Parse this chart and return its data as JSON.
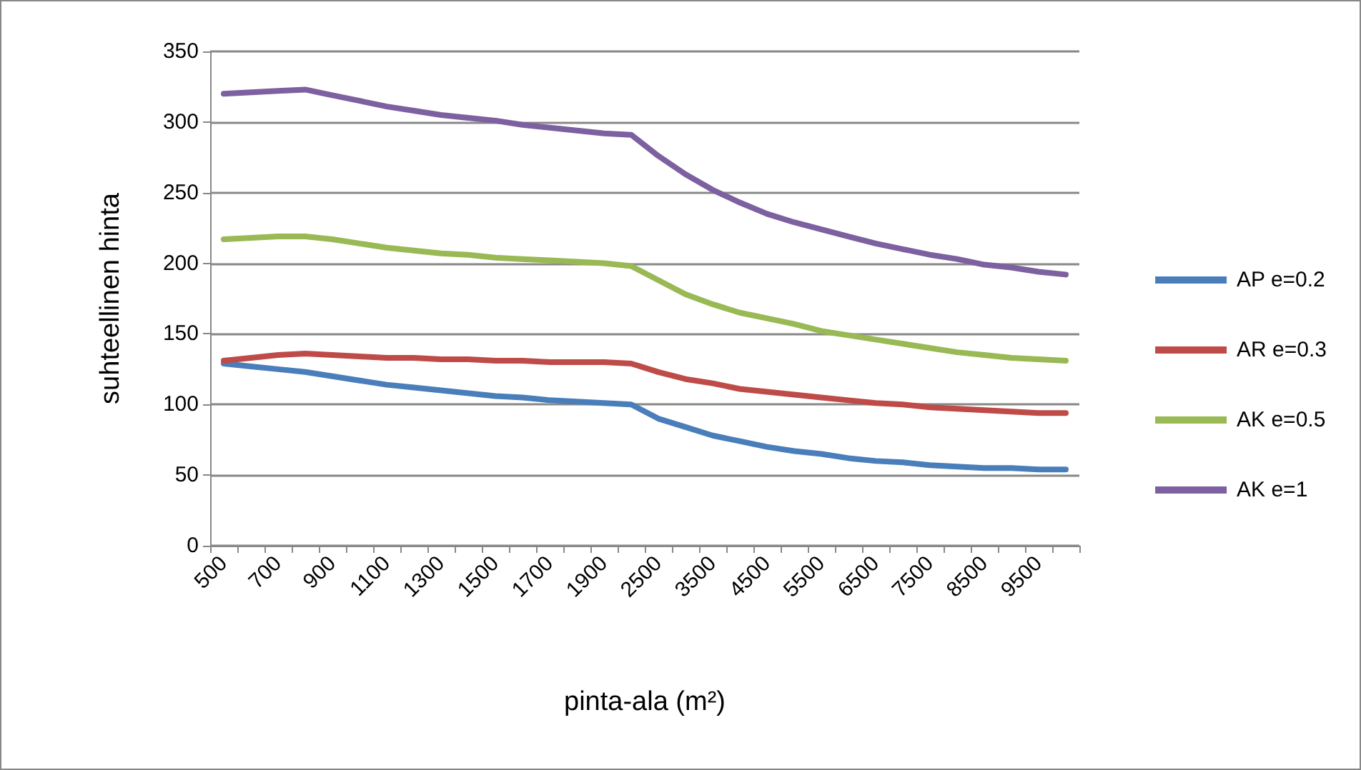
{
  "chart_data": {
    "type": "line",
    "xlabel": "pinta-ala (m²)",
    "ylabel": "suhteellinen hinta",
    "categories": [
      "500",
      null,
      "700",
      null,
      "900",
      null,
      "1100",
      null,
      "1300",
      null,
      "1500",
      null,
      "1700",
      null,
      "1900",
      null,
      "2500",
      null,
      "3500",
      null,
      "4500",
      null,
      "5500",
      null,
      "6500",
      null,
      "7500",
      null,
      "8500",
      null,
      "9500",
      null
    ],
    "series": [
      {
        "name": "AP e=0.2",
        "color": "#4a7ebb",
        "values": [
          129,
          127,
          125,
          123,
          120,
          117,
          114,
          112,
          110,
          108,
          106,
          105,
          103,
          102,
          101,
          100,
          90,
          84,
          78,
          74,
          70,
          67,
          65,
          62,
          60,
          59,
          57,
          56,
          55,
          55,
          54,
          54
        ]
      },
      {
        "name": "AR e=0.3",
        "color": "#be4b48",
        "values": [
          131,
          133,
          135,
          136,
          135,
          134,
          133,
          133,
          132,
          132,
          131,
          131,
          130,
          130,
          130,
          129,
          123,
          118,
          115,
          111,
          109,
          107,
          105,
          103,
          101,
          100,
          98,
          97,
          96,
          95,
          94,
          94
        ]
      },
      {
        "name": "AK e=0.5",
        "color": "#98b954",
        "values": [
          217,
          218,
          219,
          219,
          217,
          214,
          211,
          209,
          207,
          206,
          204,
          203,
          202,
          201,
          200,
          198,
          188,
          178,
          171,
          165,
          161,
          157,
          152,
          149,
          146,
          143,
          140,
          137,
          135,
          133,
          132,
          131
        ]
      },
      {
        "name": "AK e=1",
        "color": "#7d60a0",
        "values": [
          320,
          321,
          322,
          323,
          319,
          315,
          311,
          308,
          305,
          303,
          301,
          298,
          296,
          294,
          292,
          291,
          276,
          263,
          252,
          243,
          235,
          229,
          224,
          219,
          214,
          210,
          206,
          203,
          199,
          197,
          194,
          192
        ]
      }
    ],
    "ylim": [
      0,
      350
    ],
    "yticks": [
      0,
      50,
      100,
      150,
      200,
      250,
      300,
      350
    ],
    "grid": "y",
    "legend": "right",
    "marker": "none",
    "line_style": "solid"
  }
}
